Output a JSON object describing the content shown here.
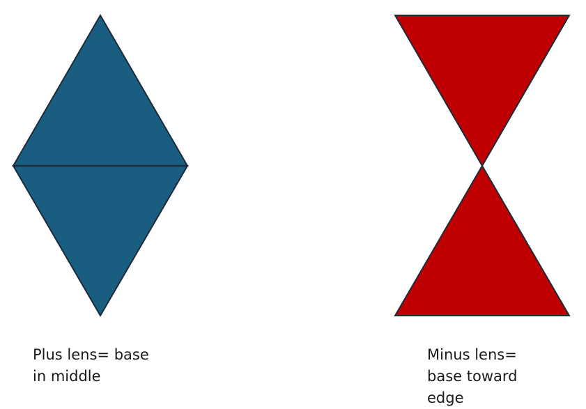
{
  "colors": {
    "plus_fill": "#195e80",
    "minus_fill": "#c00000",
    "outline": "#1c2b3a"
  },
  "plus_lens": {
    "caption_lines": [
      "Plus lens= base",
      "in middle"
    ]
  },
  "minus_lens": {
    "caption_lines": [
      "Minus lens=",
      "base toward",
      "edge"
    ]
  }
}
